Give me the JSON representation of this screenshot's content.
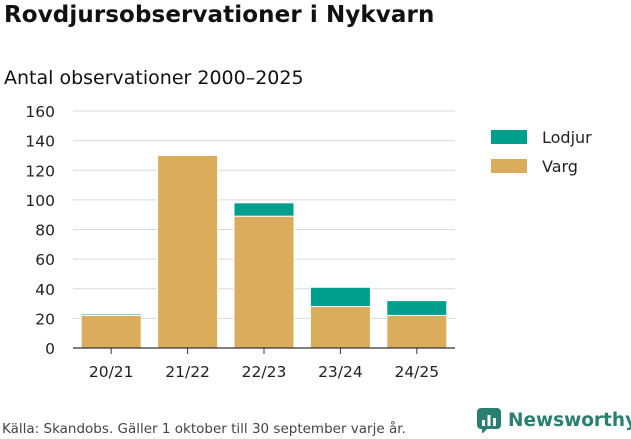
{
  "title": "Rovdjursobservationer i Nykvarn",
  "subtitle": "Antal observationer 2000–2025",
  "source": "Källa: Skandobs. Gäller 1 oktober till 30 september varje år.",
  "brand": {
    "name": "Newsworthy",
    "icon": "newsworthy-logo-icon",
    "color": "#2a7f6f"
  },
  "chart_data": {
    "type": "bar",
    "stacked": true,
    "categories": [
      "20/21",
      "21/22",
      "22/23",
      "23/24",
      "24/25"
    ],
    "series": [
      {
        "name": "Varg",
        "color": "#d9ad5c",
        "values": [
          22,
          130,
          89,
          28,
          22
        ]
      },
      {
        "name": "Lodjur",
        "color": "#009e8c",
        "values": [
          1,
          0,
          9,
          13,
          10
        ]
      }
    ],
    "legend_order": [
      "Lodjur",
      "Varg"
    ],
    "legend_position": "right",
    "ylim": [
      0,
      160
    ],
    "yticks": [
      0,
      20,
      40,
      60,
      80,
      100,
      120,
      140,
      160
    ],
    "grid": true,
    "xlabel": "",
    "ylabel": ""
  }
}
